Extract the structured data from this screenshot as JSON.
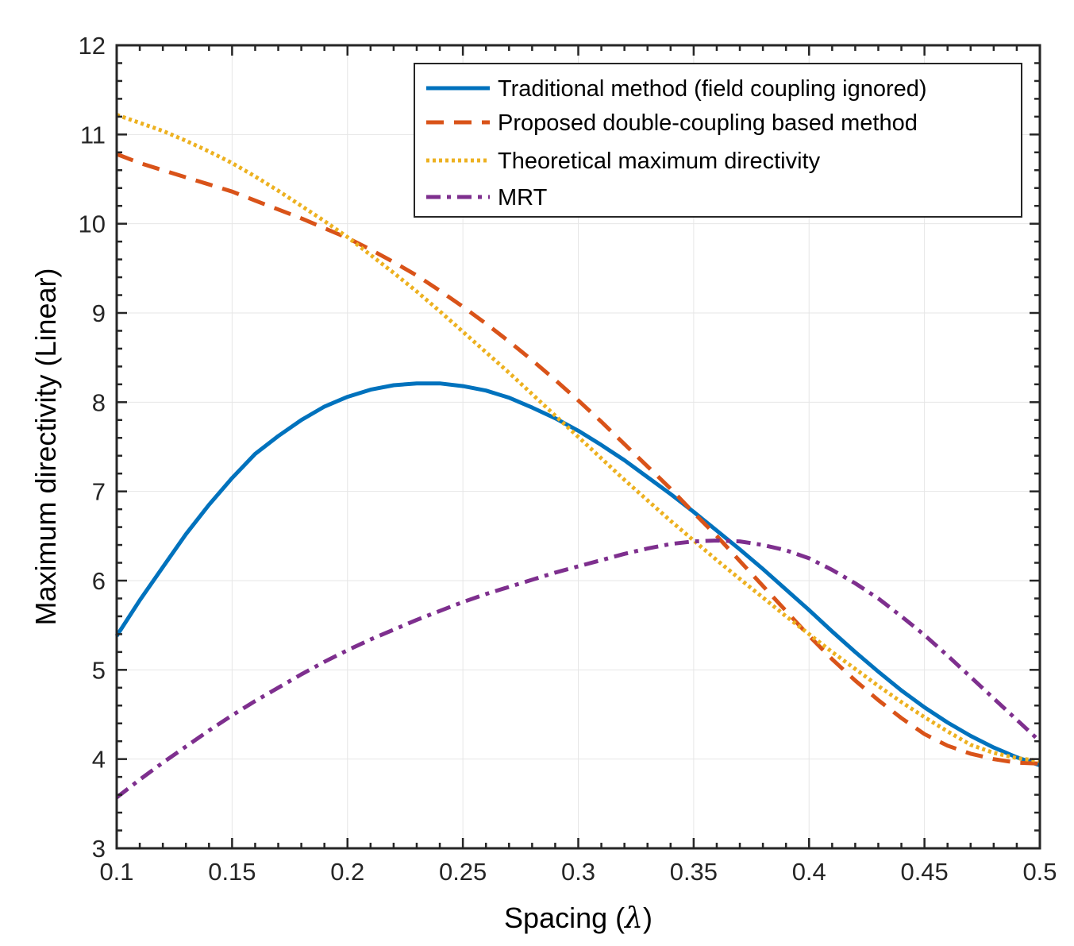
{
  "chart_data": {
    "type": "line",
    "title": "",
    "xlabel": "Spacing (",
    "xlabel_symbol": "λ",
    "xlabel_close": ")",
    "ylabel": "Maximum directivity (Linear)",
    "xlim": [
      0.1,
      0.5
    ],
    "ylim": [
      3,
      12
    ],
    "grid": true,
    "legend_position": "top-right",
    "xticks": [
      0.1,
      0.15,
      0.2,
      0.25,
      0.3,
      0.35,
      0.4,
      0.45,
      0.5
    ],
    "xtick_labels": [
      "0.1",
      "0.15",
      "0.2",
      "0.25",
      "0.3",
      "0.35",
      "0.4",
      "0.45",
      "0.5"
    ],
    "yticks": [
      3,
      4,
      5,
      6,
      7,
      8,
      9,
      10,
      11,
      12
    ],
    "ytick_labels": [
      "3",
      "4",
      "5",
      "6",
      "7",
      "8",
      "9",
      "10",
      "11",
      "12"
    ],
    "x": [
      0.1,
      0.11,
      0.12,
      0.13,
      0.14,
      0.15,
      0.16,
      0.17,
      0.18,
      0.19,
      0.2,
      0.21,
      0.22,
      0.23,
      0.24,
      0.25,
      0.26,
      0.27,
      0.28,
      0.29,
      0.3,
      0.31,
      0.32,
      0.33,
      0.34,
      0.35,
      0.36,
      0.37,
      0.38,
      0.39,
      0.4,
      0.41,
      0.42,
      0.43,
      0.44,
      0.45,
      0.46,
      0.47,
      0.48,
      0.49,
      0.5
    ],
    "series": [
      {
        "name": "Traditional method (field coupling ignored)",
        "color": "#0072BD",
        "style": "solid",
        "values": [
          5.38,
          5.78,
          6.15,
          6.52,
          6.85,
          7.15,
          7.42,
          7.62,
          7.8,
          7.95,
          8.06,
          8.14,
          8.19,
          8.21,
          8.21,
          8.18,
          8.13,
          8.05,
          7.94,
          7.82,
          7.68,
          7.52,
          7.35,
          7.16,
          6.97,
          6.77,
          6.56,
          6.35,
          6.13,
          5.9,
          5.67,
          5.43,
          5.2,
          4.98,
          4.77,
          4.58,
          4.41,
          4.26,
          4.13,
          4.02,
          3.93
        ]
      },
      {
        "name": "Proposed double-coupling based method",
        "color": "#D95319",
        "style": "dashed",
        "values": [
          10.78,
          10.68,
          10.6,
          10.52,
          10.44,
          10.36,
          10.26,
          10.16,
          10.06,
          9.95,
          9.84,
          9.71,
          9.57,
          9.42,
          9.25,
          9.07,
          8.88,
          8.68,
          8.47,
          8.25,
          8.02,
          7.78,
          7.53,
          7.28,
          7.03,
          6.76,
          6.5,
          6.22,
          5.94,
          5.66,
          5.38,
          5.12,
          4.88,
          4.66,
          4.46,
          4.28,
          4.15,
          4.06,
          4.0,
          3.96,
          3.95
        ]
      },
      {
        "name": "Theoretical maximum directivity",
        "color": "#EDB120",
        "style": "dotted",
        "values": [
          11.22,
          11.13,
          11.04,
          10.93,
          10.81,
          10.68,
          10.53,
          10.37,
          10.2,
          10.03,
          9.85,
          9.65,
          9.45,
          9.24,
          9.02,
          8.79,
          8.56,
          8.33,
          8.09,
          7.85,
          7.61,
          7.37,
          7.13,
          6.9,
          6.67,
          6.45,
          6.23,
          6.02,
          5.81,
          5.6,
          5.4,
          5.2,
          5.01,
          4.82,
          4.64,
          4.47,
          4.31,
          4.16,
          4.07,
          4.01,
          3.98
        ]
      },
      {
        "name": "MRT",
        "color": "#7E2F8E",
        "style": "dashdot",
        "values": [
          3.57,
          3.77,
          3.96,
          4.14,
          4.32,
          4.49,
          4.65,
          4.8,
          4.95,
          5.09,
          5.22,
          5.34,
          5.45,
          5.56,
          5.66,
          5.76,
          5.85,
          5.93,
          6.01,
          6.09,
          6.16,
          6.23,
          6.3,
          6.36,
          6.41,
          6.44,
          6.45,
          6.44,
          6.4,
          6.34,
          6.25,
          6.12,
          5.97,
          5.8,
          5.6,
          5.39,
          5.16,
          4.92,
          4.68,
          4.44,
          4.2
        ]
      }
    ]
  }
}
